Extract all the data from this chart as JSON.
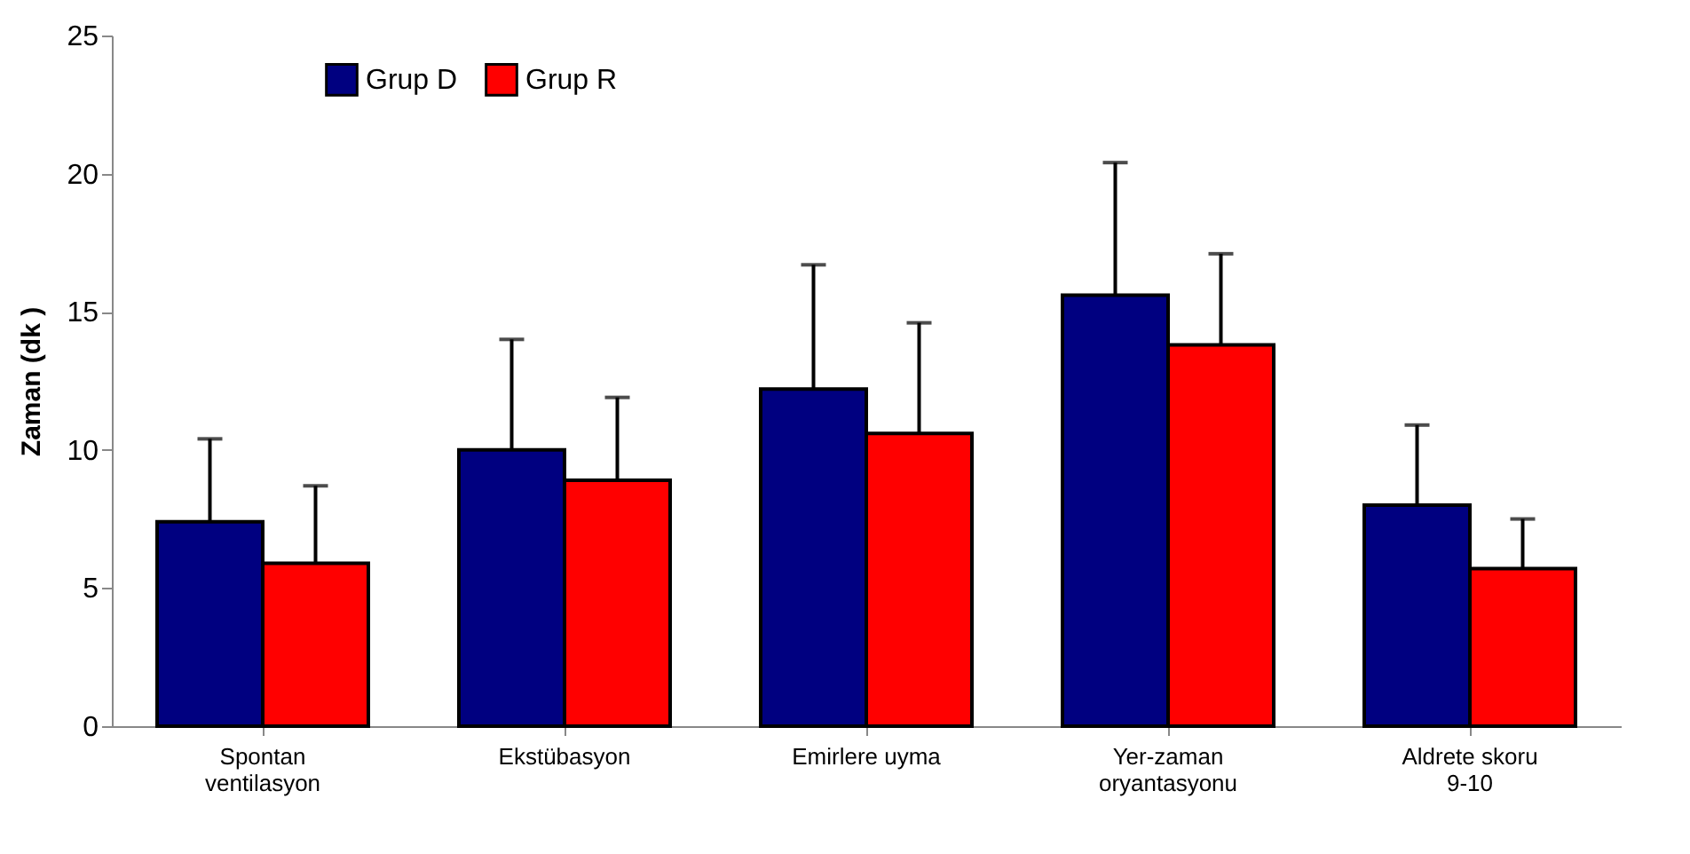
{
  "chart_data": {
    "type": "bar",
    "ylabel": "Zaman (dk )",
    "categories": [
      "Spontan ventilasyon",
      "Ekstübasyon",
      "Emirlere uyma",
      "Yer-zaman oryantasyonu",
      "Aldrete skoru 9-10"
    ],
    "series": [
      {
        "name": "Grup D",
        "color": "#000080",
        "values": [
          7.4,
          10.0,
          12.2,
          15.6,
          8.0
        ],
        "errors": [
          [
            7.4,
            10.4
          ],
          [
            10.0,
            14.0
          ],
          [
            12.2,
            16.7
          ],
          [
            15.6,
            20.4
          ],
          [
            8.0,
            10.9
          ]
        ]
      },
      {
        "name": "Grup R",
        "color": "#ff0000",
        "values": [
          5.9,
          8.9,
          10.6,
          13.8,
          5.7
        ],
        "errors": [
          [
            5.9,
            8.7
          ],
          [
            8.9,
            11.9
          ],
          [
            10.6,
            14.6
          ],
          [
            13.8,
            17.1
          ],
          [
            5.7,
            7.5
          ]
        ]
      }
    ],
    "ylim": [
      0,
      25
    ],
    "yticks": [
      0,
      5,
      10,
      15,
      20,
      25
    ],
    "grid": false,
    "legend": "top left"
  }
}
